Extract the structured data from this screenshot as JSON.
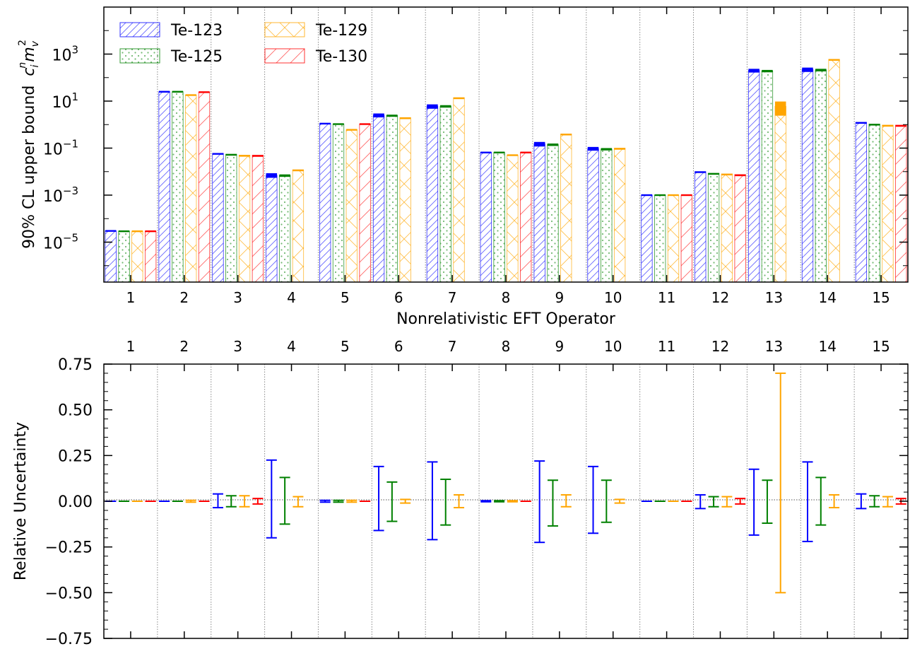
{
  "chart_data": [
    {
      "type": "bar",
      "xlabel": "Nonrelativistic EFT Operator",
      "ylabel": "90% CL upper bound",
      "ylabel_math": {
        "base": "c",
        "sub": "i",
        "sup": "n",
        "m": "m",
        "m_sub": "v",
        "m_sup": "2"
      },
      "yscale": "log",
      "ylim": [
        2e-07,
        100000
      ],
      "yticks": [
        {
          "value": 1000,
          "mantissa": "10",
          "exp": "3"
        },
        {
          "value": 10,
          "mantissa": "10",
          "exp": "1"
        },
        {
          "value": 0.1,
          "mantissa": "10",
          "exp": "−1"
        },
        {
          "value": 0.001,
          "mantissa": "10",
          "exp": "−3"
        },
        {
          "value": 1e-05,
          "mantissa": "10",
          "exp": "−5"
        }
      ],
      "categories": [
        "1",
        "2",
        "3",
        "4",
        "5",
        "6",
        "7",
        "8",
        "9",
        "10",
        "11",
        "12",
        "13",
        "14",
        "15"
      ],
      "legend_position": "top-left",
      "series": [
        {
          "name": "Te-123",
          "color": "#0000ff",
          "pattern": "diagonal",
          "values": [
            3e-05,
            25,
            0.06,
            0.007,
            1.1,
            2.5,
            6,
            0.065,
            0.15,
            0.095,
            0.001,
            0.01,
            200,
            220,
            1.25
          ],
          "uncertainty": [
            0,
            0,
            0.03,
            0.22,
            0,
            0.19,
            0.21,
            0,
            0.22,
            0.18,
            0,
            0.03,
            0.18,
            0.21,
            0.03
          ]
        },
        {
          "name": "Te-125",
          "color": "#008000",
          "pattern": "dots",
          "values": [
            2.9e-05,
            25,
            0.055,
            0.0068,
            1.05,
            2.4,
            6,
            0.065,
            0.14,
            0.09,
            0.001,
            0.0085,
            190,
            210,
            1.05
          ],
          "uncertainty": [
            0,
            0,
            0.025,
            0.12,
            0,
            0.105,
            0.12,
            0,
            0.12,
            0.115,
            0,
            0.025,
            0.115,
            0.125,
            0.025
          ]
        },
        {
          "name": "Te-129",
          "color": "#ffa500",
          "pattern": "crosshatch",
          "values": [
            2.9e-05,
            18,
            0.05,
            0.012,
            0.6,
            2,
            14,
            0.05,
            0.4,
            0.1,
            0.001,
            0.008,
            6,
            600,
            0.95
          ],
          "uncertainty": [
            0,
            0,
            0.02,
            0.02,
            0,
            0.01,
            0.025,
            0,
            0.025,
            0.01,
            0,
            0.02,
            0.6,
            0.025,
            0.02
          ]
        },
        {
          "name": "Te-130",
          "color": "#ff0000",
          "pattern": "diagonal",
          "values": [
            2.9e-05,
            24,
            0.05,
            null,
            1.05,
            null,
            null,
            0.065,
            null,
            null,
            0.001,
            0.0075,
            null,
            null,
            0.95
          ],
          "uncertainty": [
            0,
            0,
            0.01,
            0,
            0,
            0,
            0,
            0,
            0,
            0,
            0,
            0.01,
            0,
            0,
            0.01
          ]
        }
      ]
    },
    {
      "type": "errorbar",
      "xlabel": "",
      "ylabel": "Relative Uncertainty",
      "ylim": [
        -0.75,
        0.75
      ],
      "yticks": [
        "0.75",
        "0.50",
        "0.25",
        "0.00",
        "−0.25",
        "−0.50",
        "−0.75"
      ],
      "categories": [
        "1",
        "2",
        "3",
        "4",
        "5",
        "6",
        "7",
        "8",
        "9",
        "10",
        "11",
        "12",
        "13",
        "14",
        "15"
      ],
      "series": [
        {
          "name": "Te-123",
          "color": "#0000ff",
          "lower": [
            0,
            0,
            -0.035,
            -0.2,
            -0.005,
            -0.16,
            -0.21,
            -0.003,
            -0.225,
            -0.175,
            0,
            -0.04,
            -0.185,
            -0.22,
            -0.04
          ],
          "upper": [
            0,
            0,
            0.04,
            0.225,
            0.005,
            0.19,
            0.215,
            0.003,
            0.22,
            0.19,
            0,
            0.035,
            0.175,
            0.215,
            0.04
          ]
        },
        {
          "name": "Te-125",
          "color": "#008000",
          "lower": [
            0,
            0,
            -0.03,
            -0.125,
            -0.005,
            -0.11,
            -0.13,
            -0.003,
            -0.135,
            -0.115,
            0,
            -0.03,
            -0.12,
            -0.13,
            -0.03
          ],
          "upper": [
            0,
            0,
            0.03,
            0.13,
            0.005,
            0.105,
            0.12,
            0.003,
            0.115,
            0.115,
            0,
            0.025,
            0.115,
            0.13,
            0.03
          ]
        },
        {
          "name": "Te-129",
          "color": "#ffa500",
          "lower": [
            0,
            -0.005,
            -0.03,
            -0.03,
            -0.005,
            -0.01,
            -0.035,
            -0.003,
            -0.03,
            -0.01,
            0,
            -0.03,
            -0.5,
            -0.035,
            -0.03
          ],
          "upper": [
            0,
            0.005,
            0.03,
            0.025,
            0.005,
            0.01,
            0.035,
            0.003,
            0.035,
            0.01,
            0,
            0.025,
            0.7,
            0.035,
            0.025
          ]
        },
        {
          "name": "Te-130",
          "color": "#ff0000",
          "lower": [
            0,
            0,
            -0.015,
            null,
            0,
            null,
            null,
            0,
            null,
            null,
            0,
            -0.015,
            null,
            null,
            -0.015
          ],
          "upper": [
            0,
            0,
            0.015,
            null,
            0,
            null,
            null,
            0,
            null,
            null,
            0,
            0.015,
            null,
            null,
            0.015
          ]
        }
      ]
    }
  ]
}
